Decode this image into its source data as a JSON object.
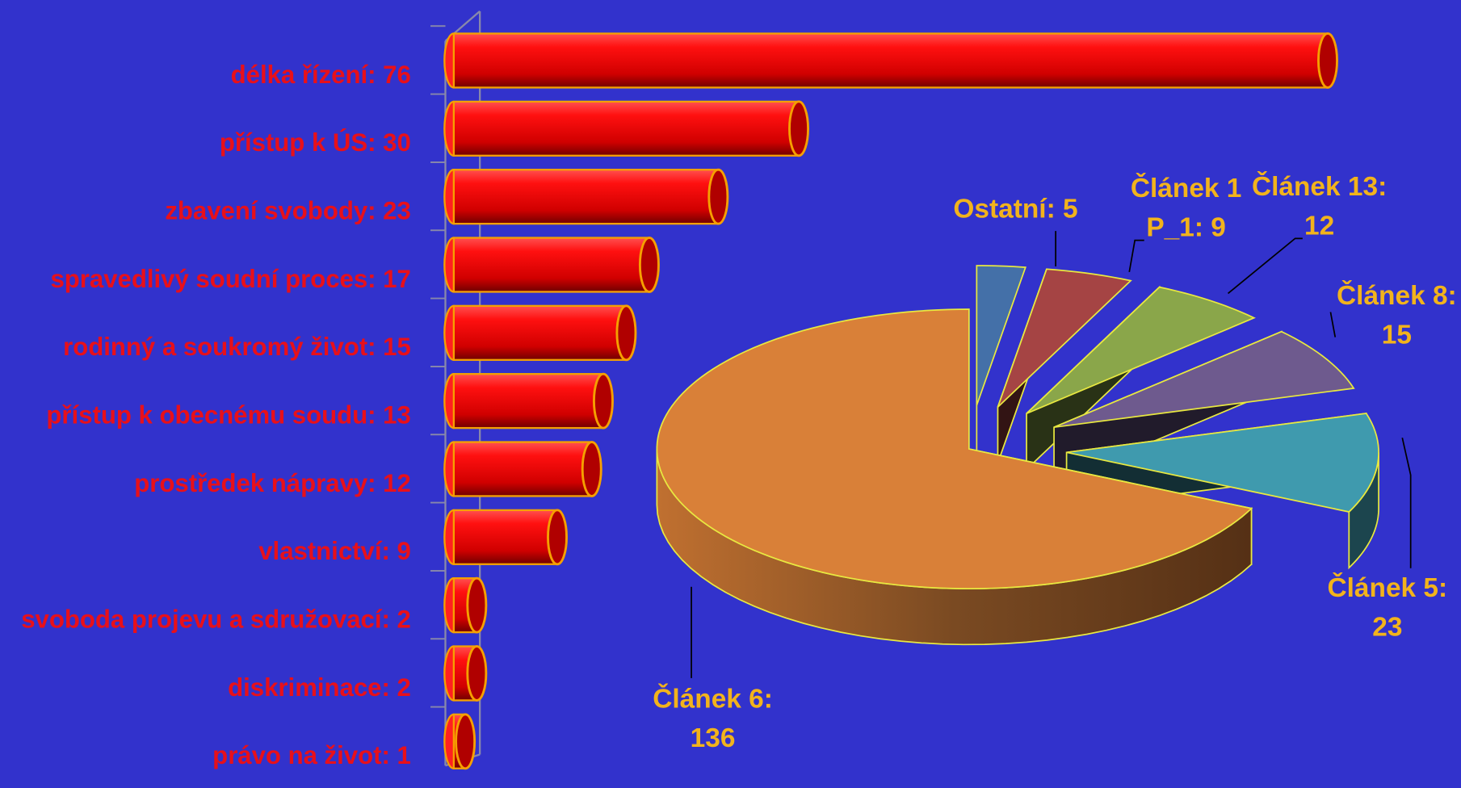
{
  "chart_data": [
    {
      "type": "bar",
      "orientation": "horizontal",
      "categories": [
        "délka řízení: 76",
        "přístup k ÚS: 30",
        "zbavení svobody: 23",
        "spravedlivý soudní proces: 17",
        "rodinný a soukromý život: 15",
        "přístup k obecnému soudu: 13",
        "prostředek nápravy: 12",
        "vlastnictví: 9",
        "svoboda projevu a sdružovací: 2",
        "diskriminace: 2",
        "právo na život: 1"
      ],
      "values": [
        76,
        30,
        23,
        17,
        15,
        13,
        12,
        9,
        2,
        2,
        1
      ],
      "color": "#ff0000",
      "xlim": [
        0,
        76
      ]
    },
    {
      "type": "pie",
      "exploded": true,
      "labels": [
        [
          "Ostatní: 5"
        ],
        [
          "Článek 1",
          "P_1: 9"
        ],
        [
          "Článek 13:",
          "12"
        ],
        [
          "Článek 8:",
          "15"
        ],
        [
          "Článek 5:",
          "23"
        ],
        [
          "Článek 6:",
          "136"
        ]
      ],
      "values": [
        5,
        9,
        12,
        15,
        23,
        136
      ],
      "colors": [
        "#4470a8",
        "#a54444",
        "#8aa64a",
        "#6e5a8e",
        "#3f9aae",
        "#d98038"
      ]
    }
  ]
}
